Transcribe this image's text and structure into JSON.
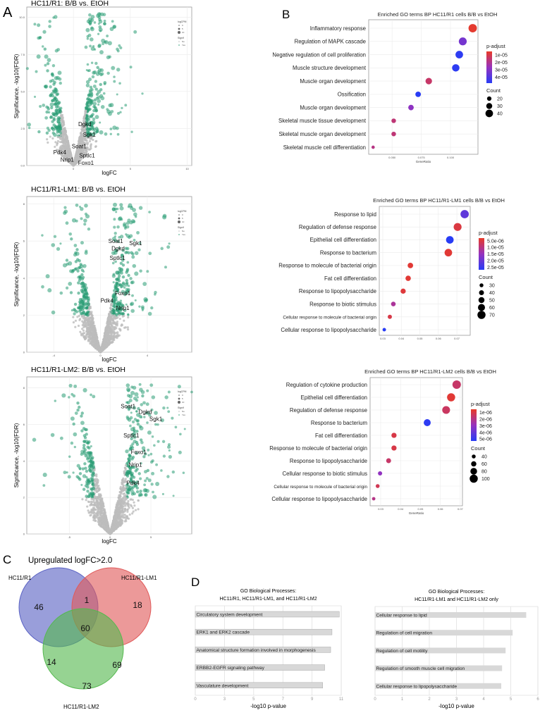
{
  "panel_labels": {
    "a": "A",
    "b": "B",
    "c": "C",
    "d": "D"
  },
  "chart_data": [
    {
      "id": "volcano1",
      "type": "scatter",
      "title": "HC11/R1: B/B vs. EtOH",
      "xlabel": "logFC",
      "ylabel": "Significance, -log10(FDR)",
      "xlim": [
        -4.1,
        10.4
      ],
      "ylim": [
        0,
        10.7
      ],
      "xticks": [
        0,
        5,
        10
      ],
      "yticks": [
        0.0,
        2.5,
        5.0,
        7.5,
        10.0
      ],
      "ytick_labels": [
        "0.0",
        "2.5",
        "5.0",
        "7.5",
        "10.0"
      ],
      "legend": {
        "size_title": "logCPM",
        "size_levels": [
          "0",
          "5",
          "10"
        ],
        "color_title": "Signif",
        "color_levels": [
          "No",
          "Yes"
        ]
      },
      "colors": {
        "no": "#bdbdbd",
        "yes": "#2a9d74"
      },
      "genes": [
        {
          "name": "Dgkd",
          "logFC": 1.0,
          "fdr": 2.8
        },
        {
          "name": "Sgk1",
          "logFC": 1.4,
          "fdr": 2.1
        },
        {
          "name": "Soat1",
          "logFC": 0.5,
          "fdr": 1.3
        },
        {
          "name": "Sptlc1",
          "logFC": 1.2,
          "fdr": 0.7
        },
        {
          "name": "Foxo1",
          "logFC": 1.1,
          "fdr": 0.2
        },
        {
          "name": "Pdk4",
          "logFC": -1.2,
          "fdr": 0.9
        },
        {
          "name": "Nrip1",
          "logFC": -0.55,
          "fdr": 0.4
        }
      ]
    },
    {
      "id": "volcano2",
      "type": "scatter",
      "title": "HC11/R1-LM1: B/B vs. EtOH",
      "xlabel": "logFC",
      "ylabel": "Significance, -log10(FDR)",
      "xlim": [
        -6.3,
        7.8
      ],
      "ylim": [
        0,
        8.4
      ],
      "xticks": [
        -4,
        0,
        4
      ],
      "yticks": [
        0,
        2,
        4,
        6,
        8
      ],
      "ytick_labels": [
        "0",
        "2",
        "4",
        "6",
        "8"
      ],
      "legend": {
        "size_title": "logCPM",
        "size_levels": [
          "0",
          "5",
          "10"
        ],
        "color_title": "Signif",
        "color_levels": [
          "No",
          "Yes"
        ]
      },
      "colors": {
        "no": "#bdbdbd",
        "yes": "#2a9d74"
      },
      "genes": [
        {
          "name": "Soat1",
          "logFC": 1.3,
          "fdr": 6.0
        },
        {
          "name": "Sgk1",
          "logFC": 3.0,
          "fdr": 5.9
        },
        {
          "name": "Dgkd",
          "logFC": 1.5,
          "fdr": 5.6
        },
        {
          "name": "Sptlc1",
          "logFC": 1.45,
          "fdr": 5.1
        },
        {
          "name": "Foxo1",
          "logFC": 1.9,
          "fdr": 3.2
        },
        {
          "name": "Pdk4",
          "logFC": 0.55,
          "fdr": 2.8
        },
        {
          "name": "Nrip1",
          "logFC": 1.9,
          "fdr": 2.4
        }
      ]
    },
    {
      "id": "volcano3",
      "type": "scatter",
      "title": "HC11/R1-LM2: B/B vs. EtOH",
      "xlabel": "logFC",
      "ylabel": "Significance, -log10(FDR)",
      "xlim": [
        -10.2,
        10.0
      ],
      "ylim": [
        0,
        8.6
      ],
      "xticks": [
        -5,
        0,
        5
      ],
      "yticks": [
        0,
        2,
        4,
        6,
        8
      ],
      "ytick_labels": [
        "0",
        "2",
        "4",
        "6",
        "8"
      ],
      "legend": {
        "size_title": "logCPM",
        "size_levels": [
          "0",
          "5",
          "10"
        ],
        "color_title": "Signif",
        "color_levels": [
          "No",
          "Yes"
        ]
      },
      "colors": {
        "no": "#bdbdbd",
        "yes": "#2a9d74"
      },
      "genes": [
        {
          "name": "Soat1",
          "logFC": 2.2,
          "fdr": 7.0
        },
        {
          "name": "Dgkd",
          "logFC": 4.3,
          "fdr": 6.7
        },
        {
          "name": "Sgk1",
          "logFC": 5.6,
          "fdr": 6.3
        },
        {
          "name": "Sptlc1",
          "logFC": 2.6,
          "fdr": 5.4
        },
        {
          "name": "Foxo1",
          "logFC": 3.5,
          "fdr": 4.5
        },
        {
          "name": "Nrip1",
          "logFC": 3.1,
          "fdr": 3.8
        },
        {
          "name": "Pdk4",
          "logFC": 2.8,
          "fdr": 2.8
        }
      ]
    },
    {
      "id": "go1",
      "type": "scatter",
      "title": "Enriched GO terms BP HC11/R1 cells B/B vs EtOH",
      "xlabel": "GeneRatio",
      "xlim": [
        0.03,
        0.1235
      ],
      "xticks": [
        0.05,
        0.075,
        0.1
      ],
      "xtick_labels": [
        "0.050",
        "0.075",
        "0.100"
      ],
      "color_title": "p-adjust",
      "color_range": [
        5e-06,
        4.8e-05
      ],
      "color_ticks": [
        1e-05,
        2e-05,
        3e-05,
        4e-05
      ],
      "color_tick_labels": [
        "1e-05",
        "2e-05",
        "3e-05",
        "4e-05"
      ],
      "size_title": "Count",
      "size_range": [
        10,
        50
      ],
      "size_ticks": [
        "20",
        "30",
        "40"
      ],
      "terms": [
        {
          "term": "Inflammatory response",
          "gene_ratio": 0.119,
          "count": 45,
          "p_adjust": 6e-06
        },
        {
          "term": "Regulation of MAPK cascade",
          "gene_ratio": 0.1105,
          "count": 42,
          "p_adjust": 3.3e-05
        },
        {
          "term": "Negative regulation of cell proliferation",
          "gene_ratio": 0.1075,
          "count": 40,
          "p_adjust": 4.7e-05
        },
        {
          "term": "Muscle structure development",
          "gene_ratio": 0.1045,
          "count": 39,
          "p_adjust": 4.7e-05
        },
        {
          "term": "Muscle organ development",
          "gene_ratio": 0.0814,
          "count": 33,
          "p_adjust": 1.4e-05
        },
        {
          "term": "Ossification",
          "gene_ratio": 0.0723,
          "count": 27,
          "p_adjust": 4.8e-05
        },
        {
          "term": "Muscle organ development",
          "gene_ratio": 0.0662,
          "count": 27,
          "p_adjust": 2.8e-05
        },
        {
          "term": "Skeletal muscle tissue development",
          "gene_ratio": 0.0514,
          "count": 21,
          "p_adjust": 1.6e-05
        },
        {
          "term": "Skeletal muscle organ development",
          "gene_ratio": 0.0514,
          "count": 21,
          "p_adjust": 1.6e-05
        },
        {
          "term": "Skeletal muscle cell differentiation",
          "gene_ratio": 0.0338,
          "count": 13,
          "p_adjust": 1.8e-05
        }
      ]
    },
    {
      "id": "go2",
      "type": "scatter",
      "title": "Enriched GO terms BP HC11/R1-LM1 cells B/B vs EtOH",
      "xlabel": "",
      "xlim": [
        0.0281,
        0.0772
      ],
      "xticks": [
        0.03,
        0.04,
        0.05,
        0.06,
        0.07
      ],
      "xtick_labels": [
        "0.03",
        "0.04",
        "0.05",
        "0.06",
        "0.07"
      ],
      "color_title": "p-adjust",
      "color_range": [
        3e-06,
        2.7e-05
      ],
      "color_ticks": [
        5e-06,
        1e-05,
        1.5e-05,
        2e-05,
        2.5e-05
      ],
      "color_tick_labels": [
        "5.0e-06",
        "1.0e-05",
        "1.5e-05",
        "2.0e-05",
        "2.5e-05"
      ],
      "size_title": "Count",
      "size_range": [
        20,
        80
      ],
      "size_ticks": [
        "30",
        "40",
        "50",
        "60",
        "70"
      ],
      "terms": [
        {
          "term": "Response to lipid",
          "gene_ratio": 0.0742,
          "count": 72,
          "p_adjust": 2.1e-05
        },
        {
          "term": "Regulation of defense response",
          "gene_ratio": 0.0704,
          "count": 68,
          "p_adjust": 5e-06
        },
        {
          "term": "Epithelial cell differentiation",
          "gene_ratio": 0.0662,
          "count": 65,
          "p_adjust": 2.7e-05
        },
        {
          "term": "Response to bacterium",
          "gene_ratio": 0.0654,
          "count": 65,
          "p_adjust": 4e-06
        },
        {
          "term": "Response to molecule of bacterial origin",
          "gene_ratio": 0.0449,
          "count": 45,
          "p_adjust": 4e-06
        },
        {
          "term": "Fat cell differentiation",
          "gene_ratio": 0.0437,
          "count": 44,
          "p_adjust": 4e-06
        },
        {
          "term": "Response to lipopolysaccharide",
          "gene_ratio": 0.041,
          "count": 42,
          "p_adjust": 4.5e-06
        },
        {
          "term": "Response to biotic stimulus",
          "gene_ratio": 0.0357,
          "count": 37,
          "p_adjust": 1.2e-05
        },
        {
          "term": "Cellular response to molecule of bacterial origin",
          "gene_ratio": 0.0338,
          "count": 33,
          "p_adjust": 5.5e-06
        },
        {
          "term": "Cellular response to lipopolysaccharide",
          "gene_ratio": 0.0308,
          "count": 26,
          "p_adjust": 2.7e-05
        }
      ]
    },
    {
      "id": "go3",
      "type": "scatter",
      "title": "Enriched GO terms BP HC11/R1-LM2 cells B/B vs EtOH",
      "xlabel": "GeneRatio",
      "xlim": [
        0.0247,
        0.0711
      ],
      "xticks": [
        0.03,
        0.04,
        0.05,
        0.06,
        0.07
      ],
      "xtick_labels": [
        "0.03",
        "0.04",
        "0.05",
        "0.06",
        "0.07"
      ],
      "color_title": "p-adjust",
      "color_range": [
        5e-07,
        5.3e-06
      ],
      "color_ticks": [
        1e-06,
        2e-06,
        3e-06,
        4e-06,
        5e-06
      ],
      "color_tick_labels": [
        "1e-06",
        "2e-06",
        "3e-06",
        "4e-06",
        "5e-06"
      ],
      "size_title": "Count",
      "size_range": [
        25,
        115
      ],
      "size_ticks": [
        "40",
        "60",
        "80",
        "100"
      ],
      "terms": [
        {
          "term": "Regulation of cytokine production",
          "gene_ratio": 0.0682,
          "count": 105,
          "p_adjust": 1.5e-06
        },
        {
          "term": "Epithelial cell differentiation",
          "gene_ratio": 0.0654,
          "count": 100,
          "p_adjust": 7e-07
        },
        {
          "term": "Regulation of defense response",
          "gene_ratio": 0.0629,
          "count": 96,
          "p_adjust": 1.4e-06
        },
        {
          "term": "Response to bacterium",
          "gene_ratio": 0.0534,
          "count": 84,
          "p_adjust": 5.2e-06
        },
        {
          "term": "Fat cell differentiation",
          "gene_ratio": 0.0367,
          "count": 58,
          "p_adjust": 1e-06
        },
        {
          "term": "Response to molecule of bacterial origin",
          "gene_ratio": 0.0367,
          "count": 58,
          "p_adjust": 1e-06
        },
        {
          "term": "Response to lipopolysaccharide",
          "gene_ratio": 0.034,
          "count": 54,
          "p_adjust": 1.5e-06
        },
        {
          "term": "Cellular response to biotic stimulus",
          "gene_ratio": 0.0297,
          "count": 45,
          "p_adjust": 3e-06
        },
        {
          "term": "Cellular response to molecule of bacterial origin",
          "gene_ratio": 0.0285,
          "count": 40,
          "p_adjust": 1.2e-06
        },
        {
          "term": "Cellular response to lipopolysaccharide",
          "gene_ratio": 0.0265,
          "count": 33,
          "p_adjust": 2e-06
        }
      ]
    },
    {
      "id": "venn",
      "type": "venn",
      "title": "Upregulated logFC>2.0",
      "sets": [
        "HC11/R1",
        "HC11/R1-LM1",
        "HC11/R1-LM2"
      ],
      "colors": [
        "#5b63c4",
        "#e05a5a",
        "#55b84f"
      ],
      "regions": {
        "R1_only": 46,
        "LM1_only": 18,
        "LM2_only": 73,
        "R1_LM1": 1,
        "R1_LM2": 14,
        "LM1_LM2": 69,
        "all": 60
      }
    },
    {
      "id": "bar1",
      "type": "bar",
      "title": [
        "GO Biological Processes:",
        "HC11/R1, HC11/R1-LM1, and HC11/R1-LM2"
      ],
      "xlabel": "-log10 p-value",
      "xlim": [
        0,
        11
      ],
      "xtick_labels": [
        "0",
        "3",
        "5",
        "7",
        "9",
        "11"
      ],
      "categories": [
        "Circulatory system development",
        "ERK1 and ERK2 cascade",
        "Anatomical structure formation involved in morphogenesis",
        "ERBB2-EGFR signaling pathway",
        "Vasculature development"
      ],
      "values": [
        10.85,
        10.3,
        10.2,
        9.75,
        9.6
      ]
    },
    {
      "id": "bar2",
      "type": "bar",
      "title": [
        "GO Biological Processes:",
        "HC11/R1-LM1 and HC11/R1-LM2 only"
      ],
      "xlabel": "-log10 p-value",
      "xlim": [
        0,
        6
      ],
      "xtick_labels": [
        "0",
        "1",
        "2",
        "3",
        "4",
        "5",
        "6"
      ],
      "categories": [
        "Cellular response to lipid",
        "Regulation of cell migration",
        "Regulation of cell motility",
        "Regulation of smooth muscle cell migration",
        "Cellular response to lipopolysaccharide"
      ],
      "values": [
        5.57,
        5.07,
        4.81,
        4.68,
        4.65
      ]
    }
  ]
}
